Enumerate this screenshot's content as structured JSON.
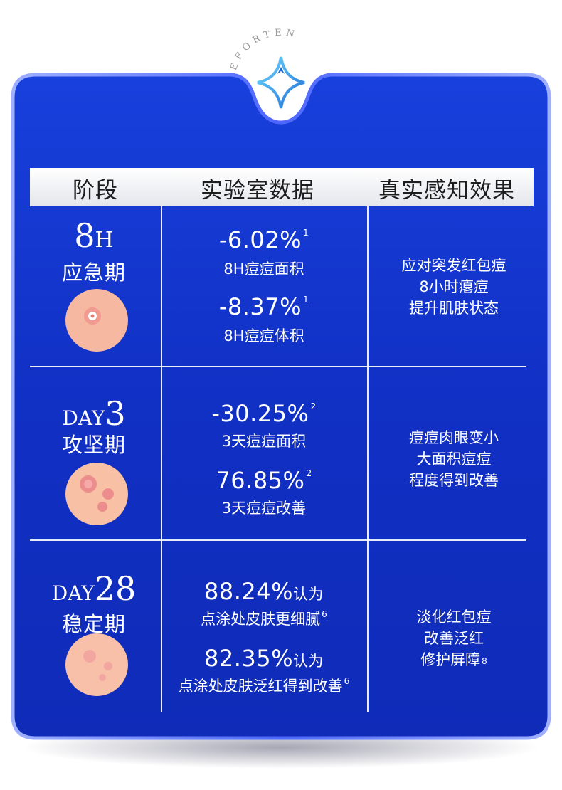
{
  "brand": "BEFORTEN",
  "colors": {
    "card": "#1434c8",
    "card_edge": "#6f85ff",
    "header_bg": "#eef0f4"
  },
  "header": [
    "阶段",
    "实验室数据",
    "真实感知效果"
  ],
  "rows": [
    {
      "stage_prefix": "8",
      "stage_unit": "H",
      "stage_name": "应急期",
      "data": [
        {
          "value": "-6.02%",
          "ref": "1",
          "desc": "8H痘痘面积"
        },
        {
          "value": "-8.37%",
          "ref": "1",
          "desc": "8H痘痘体积"
        }
      ],
      "effect": [
        "应对突发红包痘",
        "8小时瘪痘",
        "提升肌肤状态"
      ],
      "effect_ref": ""
    },
    {
      "stage_prefix": "DAY",
      "stage_unit": "3",
      "stage_name": "攻坚期",
      "data": [
        {
          "value": "-30.25%",
          "ref": "2",
          "desc": "3天痘痘面积"
        },
        {
          "value": "76.85%",
          "ref": "2",
          "desc": "3天痘痘改善"
        }
      ],
      "effect": [
        "痘痘肉眼变小",
        "大面积痘痘",
        "程度得到改善"
      ],
      "effect_ref": ""
    },
    {
      "stage_prefix": "DAY",
      "stage_unit": "28",
      "stage_name": "稳定期",
      "data": [
        {
          "value": "88.24%",
          "suffix": "认为",
          "ref": "6",
          "desc": "点涂处皮肤更细腻"
        },
        {
          "value": "82.35%",
          "suffix": "认为",
          "ref": "6",
          "desc": "点涂处皮肤泛红得到改善"
        }
      ],
      "effect": [
        "淡化红包痘",
        "改善泛红",
        "修护屏障"
      ],
      "effect_ref": "8"
    }
  ]
}
